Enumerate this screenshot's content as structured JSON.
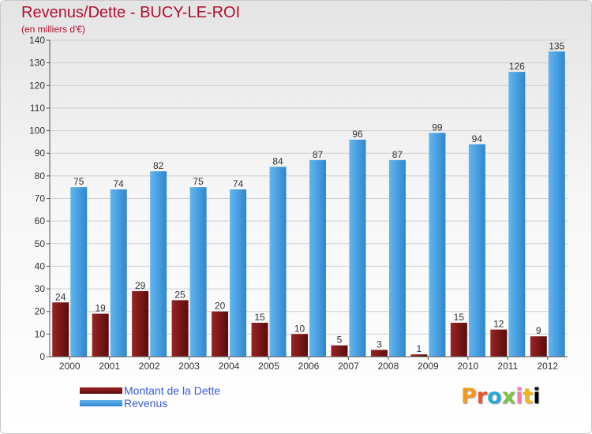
{
  "chart_data": {
    "type": "bar",
    "title": "Revenus/Dette - BUCY-LE-ROI",
    "subtitle": "(en milliers d'€)",
    "categories": [
      "2000",
      "2001",
      "2002",
      "2003",
      "2004",
      "2005",
      "2006",
      "2007",
      "2008",
      "2009",
      "2010",
      "2011",
      "2012"
    ],
    "series": [
      {
        "name": "Montant de la Dette",
        "color": "#7a1414",
        "values": [
          24,
          19,
          29,
          25,
          20,
          15,
          10,
          5,
          3,
          1,
          15,
          12,
          9
        ]
      },
      {
        "name": "Revenus",
        "color": "#4aa3e0",
        "values": [
          75,
          74,
          82,
          75,
          74,
          84,
          87,
          96,
          87,
          99,
          94,
          126,
          135
        ]
      }
    ],
    "ylim": [
      0,
      140
    ],
    "yticks": [
      0,
      10,
      20,
      30,
      40,
      50,
      60,
      70,
      80,
      90,
      100,
      110,
      120,
      130,
      140
    ],
    "grid": true,
    "legend_position": "bottom-left"
  },
  "logo": {
    "letters": [
      "P",
      "r",
      "o",
      "x",
      "i",
      "t",
      "i"
    ],
    "text": "Proxiti"
  }
}
